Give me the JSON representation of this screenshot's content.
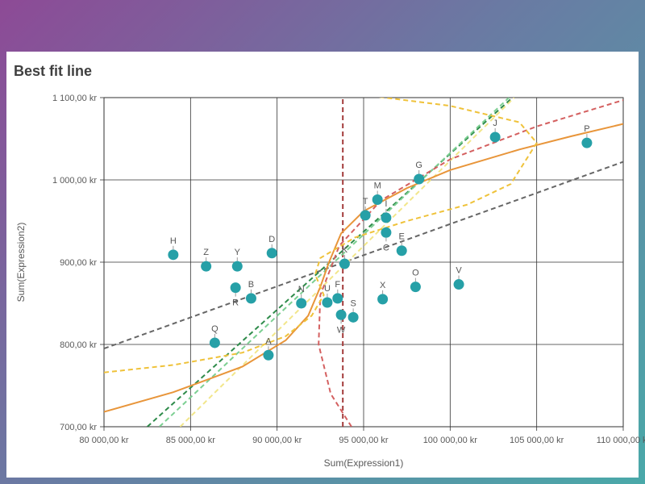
{
  "chart_data": {
    "type": "scatter",
    "title": "Best fit line",
    "xlabel": "Sum(Expression1)",
    "ylabel": "Sum(Expression2)",
    "xlim": [
      80000,
      110000
    ],
    "ylim": [
      700,
      1100
    ],
    "x_ticks": [
      80000,
      85000,
      90000,
      95000,
      100000,
      105000,
      110000
    ],
    "x_tick_labels": [
      "80 000,00 kr",
      "85 000,00 kr",
      "90 000,00 kr",
      "95 000,00 kr",
      "100 000,00 kr",
      "105 000,00 kr",
      "110 000,00 kr"
    ],
    "y_ticks": [
      700,
      800,
      900,
      1000,
      1100
    ],
    "y_tick_labels": [
      "700,00 kr",
      "800,00 kr",
      "900,00 kr",
      "1 000,00 kr",
      "1 100,00 kr"
    ],
    "grid": true,
    "point_color": "#26a0a7",
    "points": [
      {
        "label": "A",
        "x": 89500,
        "y": 787,
        "label_pos": "above"
      },
      {
        "label": "B",
        "x": 88500,
        "y": 856,
        "label_pos": "above"
      },
      {
        "label": "C",
        "x": 96300,
        "y": 936,
        "label_pos": "below"
      },
      {
        "label": "D",
        "x": 89700,
        "y": 911,
        "label_pos": "above"
      },
      {
        "label": "E",
        "x": 97200,
        "y": 914,
        "label_pos": "above"
      },
      {
        "label": "F",
        "x": 93500,
        "y": 856,
        "label_pos": "above"
      },
      {
        "label": "G",
        "x": 98200,
        "y": 1001,
        "label_pos": "above"
      },
      {
        "label": "H",
        "x": 84000,
        "y": 909,
        "label_pos": "above"
      },
      {
        "label": "I",
        "x": 96300,
        "y": 954,
        "label_pos": "above"
      },
      {
        "label": "J",
        "x": 102600,
        "y": 1052,
        "label_pos": "above"
      },
      {
        "label": "K",
        "x": 93900,
        "y": 898,
        "label_pos": "above"
      },
      {
        "label": "M",
        "x": 95800,
        "y": 976,
        "label_pos": "above"
      },
      {
        "label": "N",
        "x": 91400,
        "y": 850,
        "label_pos": "above"
      },
      {
        "label": "O",
        "x": 98000,
        "y": 870,
        "label_pos": "above"
      },
      {
        "label": "P",
        "x": 107900,
        "y": 1045,
        "label_pos": "above"
      },
      {
        "label": "Q",
        "x": 86400,
        "y": 802,
        "label_pos": "above"
      },
      {
        "label": "R",
        "x": 87600,
        "y": 869,
        "label_pos": "below"
      },
      {
        "label": "S",
        "x": 94400,
        "y": 833,
        "label_pos": "above"
      },
      {
        "label": "T",
        "x": 95100,
        "y": 957,
        "label_pos": "above"
      },
      {
        "label": "U",
        "x": 92900,
        "y": 851,
        "label_pos": "above"
      },
      {
        "label": "V",
        "x": 100500,
        "y": 873,
        "label_pos": "above"
      },
      {
        "label": "W",
        "x": 93700,
        "y": 836,
        "label_pos": "below"
      },
      {
        "label": "X",
        "x": 96100,
        "y": 855,
        "label_pos": "above"
      },
      {
        "label": "Y",
        "x": 87700,
        "y": 895,
        "label_pos": "above"
      },
      {
        "label": "Z",
        "x": 85900,
        "y": 895,
        "label_pos": "above"
      }
    ],
    "fit_lines": [
      {
        "style": "dashed",
        "color": "#666666",
        "points": [
          [
            80000,
            795
          ],
          [
            110000,
            1022
          ]
        ]
      },
      {
        "style": "dashed",
        "color": "#a33a3a",
        "points": [
          [
            93800,
            700
          ],
          [
            93800,
            1100
          ]
        ]
      },
      {
        "style": "dashed",
        "color": "#2e8b4a",
        "points": [
          [
            82500,
            700
          ],
          [
            103600,
            1100
          ]
        ]
      },
      {
        "style": "dashed",
        "color": "#7ccf92",
        "points": [
          [
            83200,
            700
          ],
          [
            103400,
            1100
          ]
        ]
      },
      {
        "style": "dashed",
        "color": "#f2e68a",
        "points": [
          [
            84400,
            700
          ],
          [
            103700,
            1100
          ]
        ]
      },
      {
        "style": "dashed",
        "color": "#d46060",
        "points": [
          [
            94300,
            700
          ],
          [
            93100,
            740
          ],
          [
            92400,
            800
          ],
          [
            92500,
            860
          ],
          [
            93600,
            920
          ],
          [
            96000,
            975
          ],
          [
            100000,
            1025
          ],
          [
            105000,
            1065
          ],
          [
            110000,
            1097
          ]
        ]
      },
      {
        "style": "solid",
        "color": "#e8953a",
        "points": [
          [
            80000,
            718
          ],
          [
            84000,
            742
          ],
          [
            88000,
            773
          ],
          [
            90500,
            805
          ],
          [
            91800,
            835
          ],
          [
            92500,
            870
          ],
          [
            93000,
            900
          ],
          [
            93700,
            935
          ],
          [
            95000,
            962
          ],
          [
            97500,
            990
          ],
          [
            100000,
            1012
          ],
          [
            104000,
            1037
          ],
          [
            107000,
            1053
          ],
          [
            110000,
            1068
          ]
        ]
      },
      {
        "style": "dashed",
        "color": "#efc23a",
        "points": [
          [
            80000,
            766
          ],
          [
            84000,
            775
          ],
          [
            88000,
            790
          ],
          [
            90500,
            810
          ],
          [
            92000,
            835
          ],
          [
            92700,
            860
          ],
          [
            92200,
            885
          ],
          [
            92500,
            905
          ],
          [
            94500,
            930
          ],
          [
            97500,
            950
          ],
          [
            101000,
            970
          ],
          [
            103500,
            995
          ],
          [
            105000,
            1045
          ],
          [
            104000,
            1070
          ],
          [
            100000,
            1090
          ],
          [
            95500,
            1102
          ]
        ]
      }
    ]
  }
}
